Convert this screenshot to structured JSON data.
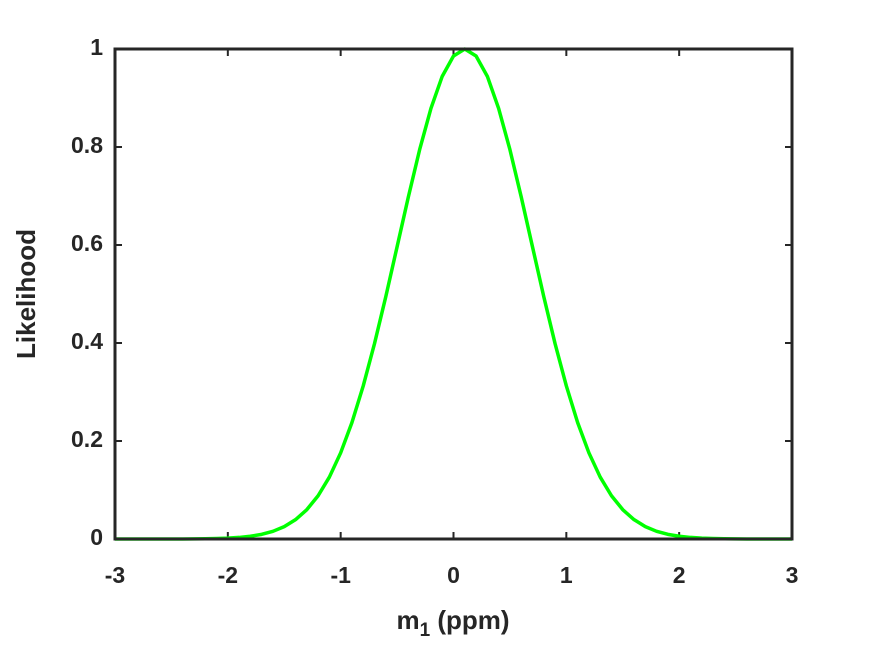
{
  "chart_data": {
    "type": "line",
    "x_label": {
      "base": "m",
      "sub": "1",
      "rest": " (ppm)"
    },
    "y_label": "Likelihood",
    "x": [
      -3,
      -2.9,
      -2.8,
      -2.7,
      -2.6,
      -2.5,
      -2.4,
      -2.3,
      -2.2,
      -2.1,
      -2,
      -1.9,
      -1.8,
      -1.7,
      -1.6,
      -1.5,
      -1.4,
      -1.3,
      -1.2,
      -1.1,
      -1,
      -0.9,
      -0.8,
      -0.7,
      -0.6,
      -0.5,
      -0.4,
      -0.3,
      -0.2,
      -0.1,
      0,
      0.1,
      0.2,
      0.3,
      0.4,
      0.5,
      0.6,
      0.7,
      0.8,
      0.9,
      1,
      1.1,
      1.2,
      1.3,
      1.4,
      1.5,
      1.6,
      1.7,
      1.8,
      1.9,
      2,
      2.1,
      2.2,
      2.3,
      2.4,
      2.5,
      2.6,
      2.7,
      2.8,
      2.9,
      3
    ],
    "series": [
      {
        "color": "#00ff00",
        "values": [
          0,
          0,
          0,
          0,
          0,
          0.0001,
          0.0001,
          0.0003,
          0.0005,
          0.001,
          0.0018,
          0.0032,
          0.0056,
          0.0095,
          0.0157,
          0.0253,
          0.0395,
          0.0599,
          0.0883,
          0.1264,
          0.1759,
          0.2378,
          0.3125,
          0.3988,
          0.4947,
          0.5963,
          0.6983,
          0.7947,
          0.8787,
          0.9442,
          0.9857,
          1,
          0.9857,
          0.9442,
          0.8787,
          0.7947,
          0.6983,
          0.5963,
          0.4947,
          0.3988,
          0.3125,
          0.2378,
          0.1759,
          0.1264,
          0.0883,
          0.0599,
          0.0395,
          0.0253,
          0.0157,
          0.0095,
          0.0056,
          0.0032,
          0.0018,
          0.001,
          0.0005,
          0.0003,
          0.0001,
          0.0001,
          0,
          0,
          0
        ]
      }
    ],
    "xlim": [
      -3,
      3
    ],
    "xticks": [
      -3,
      -2,
      -1,
      0,
      1,
      2,
      3
    ],
    "ylim": [
      0,
      1
    ],
    "yticks": [
      0,
      0.2,
      0.4,
      0.6,
      0.8,
      1
    ],
    "grid": false
  }
}
